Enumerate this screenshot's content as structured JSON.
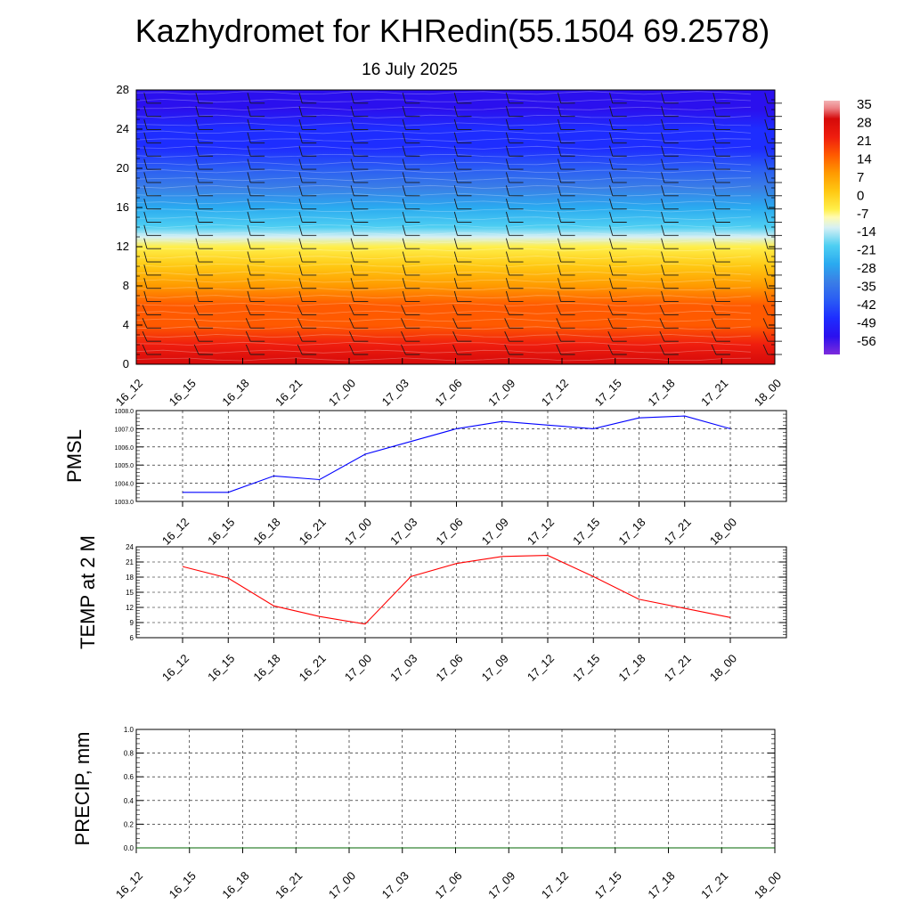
{
  "chart_data": [
    {
      "type": "heatmap",
      "title": "Kazhydromet for KHRedin(55.1504 69.2578)",
      "subtitle": "16 July 2025",
      "y_ticks": [
        0,
        4,
        8,
        12,
        16,
        20,
        24,
        28
      ],
      "ylim": [
        0,
        28
      ],
      "x_ticks": [
        "16_12",
        "16_15",
        "16_18",
        "16_21",
        "17_00",
        "17_03",
        "17_06",
        "17_09",
        "17_12",
        "17_15",
        "17_18",
        "17_21",
        "18_00"
      ],
      "colorbar_ticks": [
        35,
        28,
        21,
        14,
        7,
        0,
        -7,
        -14,
        -21,
        -28,
        -35,
        -42,
        -49,
        -56
      ],
      "temperature_profile": [
        {
          "height": 0,
          "value": 24
        },
        {
          "height": 2,
          "value": 18
        },
        {
          "height": 4,
          "value": 13
        },
        {
          "height": 6,
          "value": 9
        },
        {
          "height": 8,
          "value": 5
        },
        {
          "height": 10,
          "value": 0
        },
        {
          "height": 12,
          "value": -8
        },
        {
          "height": 13,
          "value": -14
        },
        {
          "height": 14,
          "value": -22
        },
        {
          "height": 16,
          "value": -30
        },
        {
          "height": 18,
          "value": -40
        },
        {
          "height": 20,
          "value": -46
        },
        {
          "height": 22,
          "value": -50
        },
        {
          "height": 24,
          "value": -54
        },
        {
          "height": 26,
          "value": -58
        },
        {
          "height": 28,
          "value": -60
        }
      ],
      "wind_barbs": true
    },
    {
      "type": "line",
      "ylabel": "PMSL",
      "y_ticks": [
        "1003.0",
        "1004.0",
        "1005.0",
        "1006.0",
        "1007.0",
        "1008.0"
      ],
      "ylim": [
        1003.0,
        1008.0
      ],
      "categories": [
        "16_12",
        "16_15",
        "16_18",
        "16_21",
        "17_00",
        "17_03",
        "17_06",
        "17_09",
        "17_12",
        "17_15",
        "17_18",
        "17_21",
        "18_00"
      ],
      "series": [
        {
          "values": [
            1003.5,
            1003.5,
            1004.4,
            1004.2,
            1005.6,
            1006.3,
            1007.0,
            1007.4,
            1007.2,
            1007.0,
            1007.6,
            1007.7,
            1007.0
          ],
          "color": "#0000ff"
        }
      ]
    },
    {
      "type": "line",
      "ylabel": "TEMP at 2 M",
      "y_ticks": [
        "6",
        "9",
        "12",
        "15",
        "18",
        "21",
        "24"
      ],
      "ylim": [
        6,
        24
      ],
      "categories": [
        "16_12",
        "16_15",
        "16_18",
        "16_21",
        "17_00",
        "17_03",
        "17_06",
        "17_09",
        "17_12",
        "17_15",
        "17_18",
        "17_21",
        "18_00"
      ],
      "series": [
        {
          "values": [
            20.1,
            17.8,
            12.3,
            10.2,
            8.7,
            18.1,
            20.7,
            22.1,
            22.3,
            18.1,
            13.6,
            11.8,
            10.0
          ],
          "color": "#ff0000"
        }
      ]
    },
    {
      "type": "line",
      "ylabel": "PRECIP, mm",
      "y_ticks": [
        "0.0",
        "0.2",
        "0.4",
        "0.6",
        "0.8",
        "1.0"
      ],
      "ylim": [
        0,
        1
      ],
      "categories": [
        "16_12",
        "16_15",
        "16_18",
        "16_21",
        "17_00",
        "17_03",
        "17_06",
        "17_09",
        "17_12",
        "17_15",
        "17_18",
        "17_21",
        "18_00"
      ],
      "series": [
        {
          "values": [
            0,
            0,
            0,
            0,
            0,
            0,
            0,
            0,
            0,
            0,
            0,
            0,
            0
          ],
          "color": "#006400"
        }
      ]
    }
  ]
}
